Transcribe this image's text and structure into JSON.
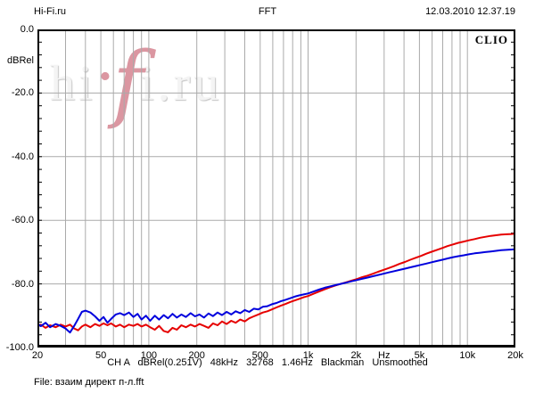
{
  "header": {
    "left": "Hi-Fi.ru",
    "center": "FFT",
    "right": "12.03.2010 12.37.19"
  },
  "plot": {
    "brand": "CLIO",
    "watermark": {
      "pre": "hi",
      "dot": "·",
      "f": "f",
      "mid": "i",
      "dot2": ".",
      "post": "ru"
    },
    "y_axis": {
      "unit_label": "dBRel",
      "ticks": [
        {
          "label": "0.0",
          "db": 0
        },
        {
          "label": "-20.0",
          "db": -20
        },
        {
          "label": "-40.0",
          "db": -40
        },
        {
          "label": "-60.0",
          "db": -60
        },
        {
          "label": "-80.0",
          "db": -80
        },
        {
          "label": "-100.0",
          "db": -100
        }
      ]
    },
    "x_axis": {
      "unit_label": "Hz",
      "ticks": [
        {
          "label": "20",
          "f": 20
        },
        {
          "label": "50",
          "f": 50
        },
        {
          "label": "100",
          "f": 100
        },
        {
          "label": "200",
          "f": 200
        },
        {
          "label": "500",
          "f": 500
        },
        {
          "label": "1k",
          "f": 1000
        },
        {
          "label": "2k",
          "f": 2000
        },
        {
          "label": "Hz",
          "f": 3000
        },
        {
          "label": "5k",
          "f": 5000
        },
        {
          "label": "10k",
          "f": 10000
        },
        {
          "label": "20k",
          "f": 20000
        }
      ]
    },
    "colors": {
      "grid": "#aaaaaa",
      "border": "#000000",
      "watermark_gray": "#f4f4f4",
      "watermark_pink": "#db96a1"
    }
  },
  "status_line": "CH A   dBRel(0.251V)   48kHz   32768   1.46Hz   Blackman   Unsmoothed",
  "file_line": "File: взаим директ п-л.fft",
  "chart_data": {
    "type": "line",
    "title": "FFT",
    "xlabel": "Hz",
    "ylabel": "dBRel",
    "x_scale": "log",
    "xlim": [
      20,
      20000
    ],
    "ylim": [
      -100,
      0
    ],
    "grid": true,
    "y_gridlines": [
      -20,
      -40,
      -60,
      -80
    ],
    "x_gridlines": [
      30,
      40,
      50,
      60,
      70,
      80,
      90,
      100,
      200,
      300,
      400,
      500,
      600,
      700,
      800,
      900,
      1000,
      2000,
      3000,
      4000,
      5000,
      6000,
      7000,
      8000,
      9000,
      10000
    ],
    "minor_y_tick_step_db": 4,
    "legend_position": "none",
    "series": [
      {
        "name": "red-noise-floor",
        "color": "#e60000",
        "points": [
          [
            20,
            -93.4
          ],
          [
            21,
            -92.8
          ],
          [
            22.5,
            -93.8
          ],
          [
            24,
            -93.0
          ],
          [
            26,
            -93.6
          ],
          [
            28,
            -92.8
          ],
          [
            30,
            -93.4
          ],
          [
            32,
            -92.8
          ],
          [
            34,
            -94.0
          ],
          [
            36,
            -94.6
          ],
          [
            38,
            -93.4
          ],
          [
            40,
            -92.8
          ],
          [
            43,
            -93.6
          ],
          [
            46,
            -92.6
          ],
          [
            49,
            -93.2
          ],
          [
            52,
            -92.4
          ],
          [
            55,
            -93.0
          ],
          [
            58,
            -92.4
          ],
          [
            62,
            -93.4
          ],
          [
            66,
            -92.8
          ],
          [
            70,
            -93.6
          ],
          [
            75,
            -92.8
          ],
          [
            80,
            -93.2
          ],
          [
            85,
            -92.6
          ],
          [
            90,
            -93.4
          ],
          [
            96,
            -92.8
          ],
          [
            102,
            -93.6
          ],
          [
            109,
            -94.4
          ],
          [
            116,
            -93.2
          ],
          [
            124,
            -94.8
          ],
          [
            132,
            -95.2
          ],
          [
            141,
            -93.8
          ],
          [
            150,
            -94.4
          ],
          [
            160,
            -93.0
          ],
          [
            171,
            -93.6
          ],
          [
            183,
            -92.8
          ],
          [
            195,
            -93.4
          ],
          [
            208,
            -92.6
          ],
          [
            222,
            -93.2
          ],
          [
            237,
            -93.8
          ],
          [
            253,
            -92.4
          ],
          [
            270,
            -93.0
          ],
          [
            288,
            -91.8
          ],
          [
            308,
            -92.6
          ],
          [
            329,
            -91.6
          ],
          [
            351,
            -92.2
          ],
          [
            375,
            -91.2
          ],
          [
            400,
            -91.8
          ],
          [
            427,
            -90.8
          ],
          [
            456,
            -90.2
          ],
          [
            487,
            -89.6
          ],
          [
            520,
            -89.0
          ],
          [
            555,
            -88.6
          ],
          [
            593,
            -88.0
          ],
          [
            633,
            -87.4
          ],
          [
            676,
            -86.8
          ],
          [
            722,
            -86.3
          ],
          [
            771,
            -85.7
          ],
          [
            823,
            -85.2
          ],
          [
            879,
            -84.7
          ],
          [
            938,
            -84.2
          ],
          [
            1000,
            -83.8
          ],
          [
            1080,
            -83.1
          ],
          [
            1170,
            -82.4
          ],
          [
            1270,
            -81.7
          ],
          [
            1370,
            -81.1
          ],
          [
            1480,
            -80.5
          ],
          [
            1600,
            -80.0
          ],
          [
            1730,
            -79.5
          ],
          [
            1870,
            -79.0
          ],
          [
            2020,
            -78.5
          ],
          [
            2180,
            -77.9
          ],
          [
            2360,
            -77.4
          ],
          [
            2550,
            -76.8
          ],
          [
            2750,
            -76.2
          ],
          [
            2970,
            -75.6
          ],
          [
            3210,
            -75.0
          ],
          [
            3470,
            -74.4
          ],
          [
            3750,
            -73.7
          ],
          [
            4050,
            -73.1
          ],
          [
            4380,
            -72.4
          ],
          [
            4730,
            -71.8
          ],
          [
            5110,
            -71.2
          ],
          [
            5520,
            -70.5
          ],
          [
            5960,
            -69.9
          ],
          [
            6440,
            -69.3
          ],
          [
            6960,
            -68.7
          ],
          [
            7520,
            -68.1
          ],
          [
            8120,
            -67.6
          ],
          [
            8770,
            -67.1
          ],
          [
            9480,
            -66.7
          ],
          [
            10200,
            -66.3
          ],
          [
            11100,
            -65.9
          ],
          [
            12000,
            -65.5
          ],
          [
            12900,
            -65.2
          ],
          [
            14000,
            -64.9
          ],
          [
            15100,
            -64.7
          ],
          [
            16300,
            -64.5
          ],
          [
            17600,
            -64.4
          ],
          [
            19000,
            -64.3
          ],
          [
            19800,
            -64.2
          ],
          [
            20000,
            -64.2
          ],
          [
            20000,
            -67.5
          ]
        ]
      },
      {
        "name": "blue-noise-floor",
        "color": "#0000dd",
        "points": [
          [
            20,
            -92.5
          ],
          [
            21,
            -93.3
          ],
          [
            22.5,
            -92.2
          ],
          [
            24,
            -93.6
          ],
          [
            26,
            -92.6
          ],
          [
            28,
            -93.2
          ],
          [
            30,
            -94.0
          ],
          [
            32,
            -95.3
          ],
          [
            34,
            -93.2
          ],
          [
            36,
            -91.0
          ],
          [
            38,
            -88.8
          ],
          [
            40,
            -88.4
          ],
          [
            43,
            -89.0
          ],
          [
            46,
            -90.2
          ],
          [
            49,
            -91.6
          ],
          [
            52,
            -90.4
          ],
          [
            55,
            -92.2
          ],
          [
            58,
            -91.0
          ],
          [
            62,
            -89.6
          ],
          [
            66,
            -89.2
          ],
          [
            70,
            -89.8
          ],
          [
            75,
            -89.0
          ],
          [
            80,
            -90.4
          ],
          [
            85,
            -89.4
          ],
          [
            90,
            -91.2
          ],
          [
            96,
            -90.0
          ],
          [
            102,
            -91.6
          ],
          [
            109,
            -90.0
          ],
          [
            116,
            -91.2
          ],
          [
            124,
            -89.8
          ],
          [
            132,
            -90.8
          ],
          [
            141,
            -89.4
          ],
          [
            150,
            -90.6
          ],
          [
            160,
            -89.6
          ],
          [
            171,
            -90.4
          ],
          [
            183,
            -89.2
          ],
          [
            195,
            -90.2
          ],
          [
            208,
            -89.6
          ],
          [
            222,
            -90.6
          ],
          [
            237,
            -89.3
          ],
          [
            253,
            -90.1
          ],
          [
            270,
            -89.0
          ],
          [
            288,
            -89.8
          ],
          [
            308,
            -88.8
          ],
          [
            329,
            -89.6
          ],
          [
            351,
            -88.6
          ],
          [
            375,
            -89.2
          ],
          [
            400,
            -88.2
          ],
          [
            427,
            -88.8
          ],
          [
            456,
            -87.8
          ],
          [
            487,
            -88.0
          ],
          [
            520,
            -87.2
          ],
          [
            555,
            -87.0
          ],
          [
            593,
            -86.4
          ],
          [
            633,
            -86.0
          ],
          [
            676,
            -85.4
          ],
          [
            722,
            -85.0
          ],
          [
            771,
            -84.5
          ],
          [
            823,
            -84.0
          ],
          [
            879,
            -83.6
          ],
          [
            938,
            -83.3
          ],
          [
            1000,
            -83.0
          ],
          [
            1080,
            -82.4
          ],
          [
            1170,
            -81.8
          ],
          [
            1270,
            -81.2
          ],
          [
            1370,
            -80.8
          ],
          [
            1480,
            -80.4
          ],
          [
            1600,
            -80.0
          ],
          [
            1730,
            -79.6
          ],
          [
            1870,
            -79.2
          ],
          [
            2020,
            -78.8
          ],
          [
            2180,
            -78.4
          ],
          [
            2360,
            -78.0
          ],
          [
            2550,
            -77.6
          ],
          [
            2750,
            -77.2
          ],
          [
            2970,
            -76.8
          ],
          [
            3210,
            -76.4
          ],
          [
            3470,
            -76.0
          ],
          [
            3750,
            -75.6
          ],
          [
            4050,
            -75.2
          ],
          [
            4380,
            -74.8
          ],
          [
            4730,
            -74.4
          ],
          [
            5110,
            -74.0
          ],
          [
            5520,
            -73.6
          ],
          [
            5960,
            -73.2
          ],
          [
            6440,
            -72.8
          ],
          [
            6960,
            -72.4
          ],
          [
            7520,
            -72.0
          ],
          [
            8120,
            -71.6
          ],
          [
            8770,
            -71.3
          ],
          [
            9480,
            -71.0
          ],
          [
            10200,
            -70.7
          ],
          [
            11100,
            -70.4
          ],
          [
            12000,
            -70.2
          ],
          [
            12900,
            -70.0
          ],
          [
            14000,
            -69.8
          ],
          [
            15100,
            -69.6
          ],
          [
            16300,
            -69.4
          ],
          [
            17600,
            -69.3
          ],
          [
            19000,
            -69.2
          ],
          [
            19800,
            -69.1
          ],
          [
            20000,
            -70.0
          ],
          [
            20000,
            -74.5
          ]
        ]
      }
    ]
  }
}
